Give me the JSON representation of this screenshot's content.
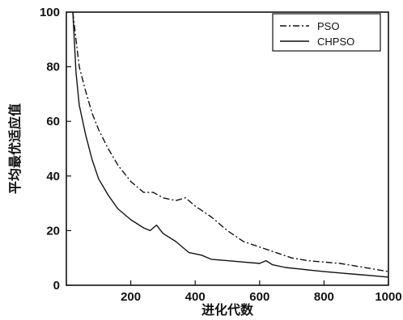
{
  "chart_data": {
    "type": "line",
    "xlabel": "进化代数",
    "ylabel": "平均最优适应值",
    "xlim": [
      0,
      1000
    ],
    "ylim": [
      0,
      100
    ],
    "xticks": [
      200,
      400,
      600,
      800,
      1000
    ],
    "yticks": [
      0,
      20,
      40,
      60,
      80,
      100
    ],
    "grid": false,
    "legend_position": "top-right",
    "series": [
      {
        "name": "PSO",
        "line_style": "dash-dot",
        "x": [
          20,
          30,
          40,
          60,
          80,
          100,
          130,
          160,
          200,
          240,
          270,
          300,
          340,
          370,
          400,
          450,
          500,
          550,
          600,
          650,
          700,
          750,
          800,
          850,
          900,
          950,
          1000
        ],
        "y": [
          100,
          90,
          80,
          71,
          63,
          57,
          50,
          44,
          38,
          34,
          34,
          32,
          31,
          32,
          29,
          25,
          20,
          16,
          14,
          12,
          10,
          9,
          8.5,
          8,
          7,
          6,
          5
        ]
      },
      {
        "name": "CHPSO",
        "line_style": "solid",
        "x": [
          20,
          30,
          40,
          60,
          80,
          100,
          130,
          160,
          200,
          240,
          260,
          280,
          300,
          340,
          380,
          420,
          450,
          500,
          550,
          600,
          620,
          640,
          680,
          720,
          760,
          800,
          850,
          900,
          950,
          1000
        ],
        "y": [
          100,
          78,
          66,
          55,
          46,
          39,
          33,
          28,
          24,
          21,
          20,
          22,
          19,
          16,
          12,
          11,
          9.5,
          9,
          8.5,
          8,
          9,
          7.5,
          6.5,
          6,
          5.5,
          5,
          4.5,
          4,
          3.5,
          3
        ]
      }
    ]
  }
}
